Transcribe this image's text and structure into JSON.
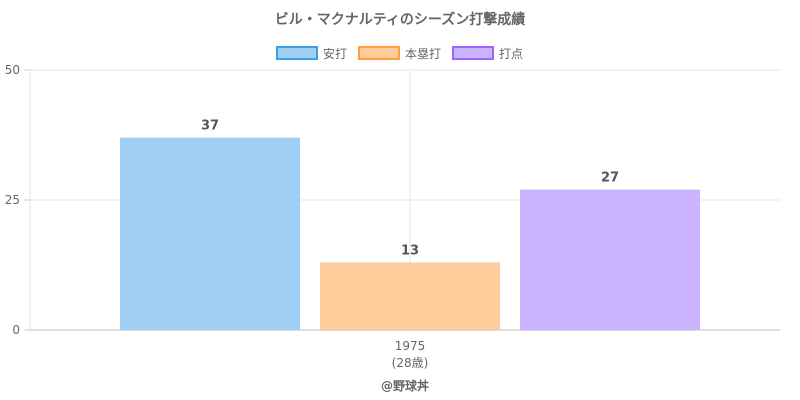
{
  "chart_data": {
    "type": "bar",
    "title": "ビル・マクナルティのシーズン打撃成績",
    "categories": [
      "1975"
    ],
    "category_sublabels": [
      "(28歳)"
    ],
    "series": [
      {
        "name": "安打",
        "values": [
          37
        ],
        "color": "#9fcff5",
        "border": "#3ea0e4"
      },
      {
        "name": "本塁打",
        "values": [
          13
        ],
        "color": "#ffcd9c",
        "border": "#ff9f40"
      },
      {
        "name": "打点",
        "values": [
          27
        ],
        "color": "#ccb3ff",
        "border": "#9966ff"
      }
    ],
    "data_labels": [
      "37",
      "13",
      "27"
    ],
    "ylim": [
      0,
      50
    ],
    "yticks": [
      0,
      25,
      50
    ],
    "grid": true,
    "legend_position": "top"
  },
  "footer": "@野球丼"
}
